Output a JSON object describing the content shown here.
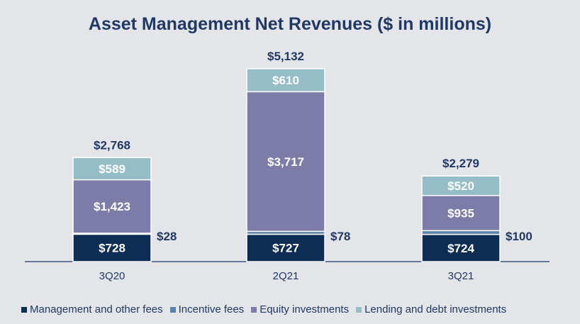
{
  "chart_data": {
    "type": "bar",
    "stacked": true,
    "title": "Asset Management Net Revenues ($ in millions)",
    "xlabel": "",
    "ylabel": "",
    "categories": [
      "3Q20",
      "2Q21",
      "3Q21"
    ],
    "series": [
      {
        "name": "Management and other fees",
        "color": "#0d2d54",
        "values": [
          728,
          727,
          724
        ],
        "labels": [
          "$728",
          "$727",
          "$724"
        ]
      },
      {
        "name": "Incentive fees",
        "color": "#5c84a8",
        "values": [
          28,
          78,
          100
        ],
        "labels": [
          "$28",
          "$78",
          "$100"
        ]
      },
      {
        "name": "Equity investments",
        "color": "#7d7ca8",
        "values": [
          1423,
          3717,
          935
        ],
        "labels": [
          "$1,423",
          "$3,717",
          "$935"
        ]
      },
      {
        "name": "Lending and debt investments",
        "color": "#94bdc7",
        "values": [
          589,
          610,
          520
        ],
        "labels": [
          "$589",
          "$610",
          "$520"
        ]
      }
    ],
    "totals": [
      "$2,768",
      "$5,132",
      "$2,279"
    ],
    "legend_position": "bottom",
    "grid": false
  }
}
